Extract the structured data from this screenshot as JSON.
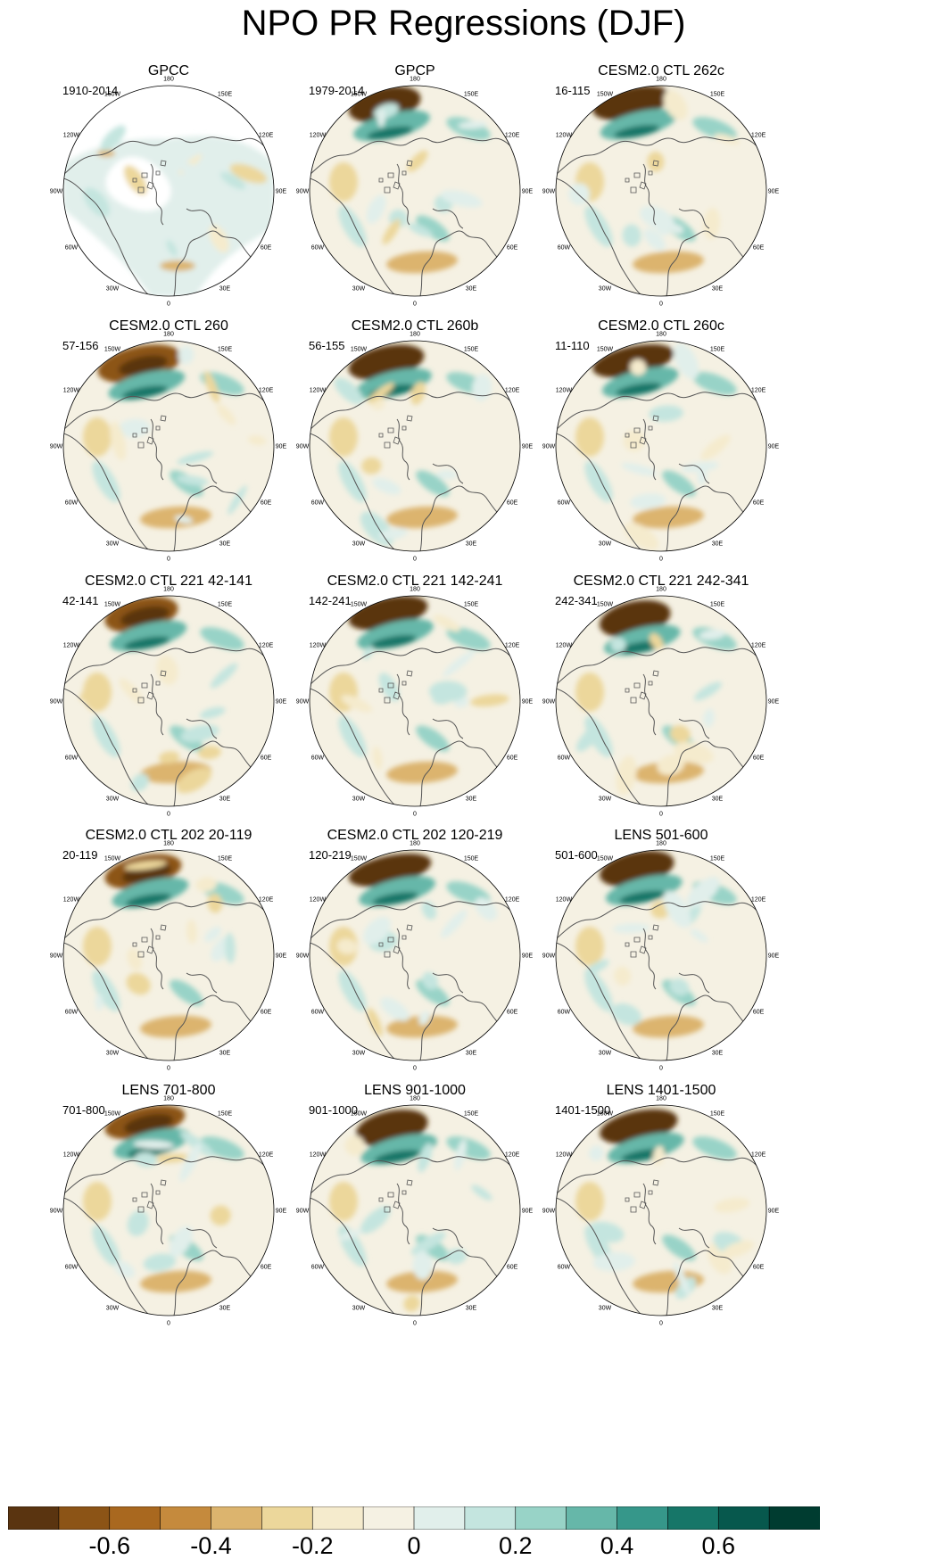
{
  "title": "NPO PR Regressions (DJF)",
  "chart_data": {
    "type": "polar-stereographic contour map grid",
    "variable": "precipitation regression on NPO index",
    "season": "DJF",
    "panels": [
      {
        "title": "GPCC",
        "period": "1910-2014",
        "masked_ocean": true
      },
      {
        "title": "GPCP",
        "period": "1979-2014"
      },
      {
        "title": "CESM2.0 CTL 262c",
        "period": "16-115"
      },
      {
        "title": "CESM2.0 CTL 260",
        "period": "57-156"
      },
      {
        "title": "CESM2.0 CTL 260b",
        "period": "56-155"
      },
      {
        "title": "CESM2.0 CTL 260c",
        "period": "11-110"
      },
      {
        "title": "CESM2.0 CTL 221 42-141",
        "period": "42-141"
      },
      {
        "title": "CESM2.0 CTL 221 142-241",
        "period": "142-241"
      },
      {
        "title": "CESM2.0 CTL 221 242-341",
        "period": "242-341"
      },
      {
        "title": "CESM2.0 CTL 202 20-119",
        "period": "20-119"
      },
      {
        "title": "CESM2.0 CTL 202 120-219",
        "period": "120-219"
      },
      {
        "title": "LENS 501-600",
        "period": "501-600"
      },
      {
        "title": "LENS 701-800",
        "period": "701-800"
      },
      {
        "title": "LENS 901-1000",
        "period": "901-1000"
      },
      {
        "title": "LENS 1401-1500",
        "period": "1401-1500"
      }
    ],
    "longitude_labels": [
      "180",
      "150E",
      "120E",
      "90E",
      "60E",
      "30E",
      "0",
      "30W",
      "60W",
      "90W",
      "120W",
      "150W"
    ],
    "colorbar": {
      "levels": [
        -0.7,
        -0.6,
        -0.5,
        -0.4,
        -0.3,
        -0.2,
        -0.1,
        0,
        0.1,
        0.2,
        0.3,
        0.4,
        0.5,
        0.6,
        0.7
      ],
      "tick_labels": [
        "-0.6",
        "-0.4",
        "-0.2",
        "0",
        "0.2",
        "0.4",
        "0.6"
      ],
      "colors": [
        "#5a3410",
        "#8c5416",
        "#a9681f",
        "#c58a3d",
        "#dcb46e",
        "#ecd79b",
        "#f5ebcd",
        "#f5f1e3",
        "#e1efeb",
        "#c4e5df",
        "#98d3c7",
        "#66b7a9",
        "#36978a",
        "#167668",
        "#07584d",
        "#003c30"
      ]
    }
  }
}
